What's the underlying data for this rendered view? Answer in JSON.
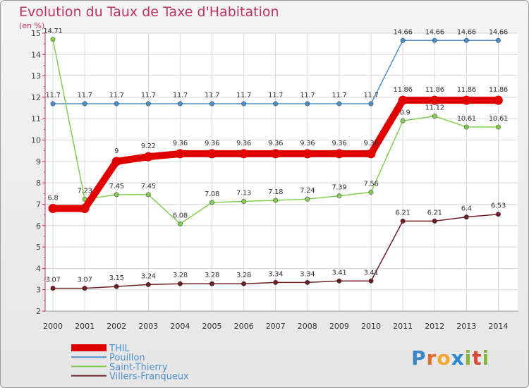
{
  "header": {
    "title": "Evolution du Taux de Taxe d'Habitation",
    "subtitle": "(en %)"
  },
  "logo": {
    "letters": [
      "P",
      "r",
      "o",
      "x",
      "i",
      "t",
      "i"
    ]
  },
  "chart_data": {
    "type": "line",
    "title": "Evolution du Taux de Taxe d'Habitation",
    "ylabel": "(en %)",
    "x": [
      "2000",
      "2001",
      "2002",
      "2003",
      "2004",
      "2005",
      "2006",
      "2007",
      "2008",
      "2009",
      "2010",
      "2011",
      "2012",
      "2013",
      "2014"
    ],
    "ylim": [
      2,
      15
    ],
    "yticks": [
      2,
      3,
      4,
      5,
      6,
      7,
      8,
      9,
      10,
      11,
      12,
      13,
      14,
      15
    ],
    "grid": true,
    "legend": "bottom-left",
    "series": [
      {
        "name": "Pouillon",
        "color": "#4f90c8",
        "values": [
          11.7,
          11.7,
          11.7,
          11.7,
          11.7,
          11.7,
          11.7,
          11.7,
          11.7,
          11.7,
          11.7,
          14.66,
          14.66,
          14.66,
          14.66
        ],
        "labels": [
          "11.7",
          "11.7",
          "11.7",
          "11.7",
          "11.7",
          "11.7",
          "11.7",
          "11.7",
          "11.7",
          "11.7",
          "11.7",
          "14.66",
          "14.66",
          "14.66",
          "14.66"
        ]
      },
      {
        "name": "Saint-Thierry",
        "color": "#84cc52",
        "values": [
          14.71,
          7.23,
          7.45,
          7.45,
          6.08,
          7.08,
          7.13,
          7.18,
          7.24,
          7.39,
          7.56,
          10.9,
          11.12,
          10.61,
          10.61
        ],
        "labels": [
          "14.71",
          "7.23",
          "7.45",
          "7.45",
          "6.08",
          "7.08",
          "7.13",
          "7.18",
          "7.24",
          "7.39",
          "7.56",
          "10.9",
          "11.12",
          "10.61",
          "10.61"
        ]
      },
      {
        "name": "Villers-Franqueux",
        "color": "#6b2028",
        "values": [
          3.07,
          3.07,
          3.15,
          3.24,
          3.28,
          3.28,
          3.28,
          3.34,
          3.34,
          3.41,
          3.41,
          6.21,
          6.21,
          6.4,
          6.53
        ],
        "labels": [
          "3.07",
          "3.07",
          "3.15",
          "3.24",
          "3.28",
          "3.28",
          "3.28",
          "3.34",
          "3.34",
          "3.41",
          "3.41",
          "6.21",
          "6.21",
          "6.4",
          "6.53"
        ]
      },
      {
        "name": "THIL",
        "color": "#e00000",
        "values": [
          6.8,
          6.8,
          9,
          9.22,
          9.36,
          9.36,
          9.36,
          9.36,
          9.36,
          9.36,
          9.36,
          11.86,
          11.86,
          11.86,
          11.86
        ],
        "labels": [
          "6.8",
          "",
          "9",
          "9.22",
          "9.36",
          "9.36",
          "9.36",
          "9.36",
          "9.36",
          "9.36",
          "9.36",
          "11.86",
          "11.86",
          "11.86",
          "11.86"
        ]
      }
    ],
    "legend_order": [
      "THIL",
      "Pouillon",
      "Saint-Thierry",
      "Villers-Franqueux"
    ]
  }
}
